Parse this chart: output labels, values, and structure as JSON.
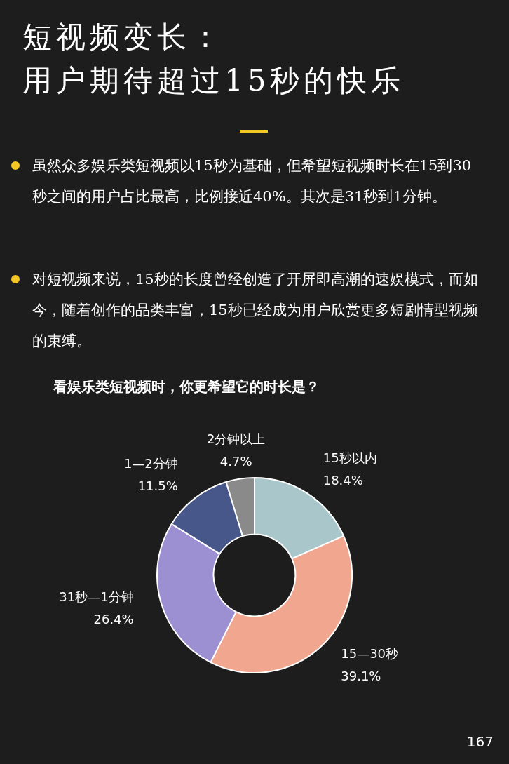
{
  "chart_data": {
    "type": "donut",
    "title": "短视频变长：",
    "subtitle": "用户期待超过15秒的快乐",
    "annotations": [
      "看娱乐类短视频时，你更希望它的时长是？",
      "虽然众多娱乐类短视频以15秒为基础，但希望短视频时长在15到30秒之间的用户占比最高，比例接近40%。其次是31秒到1分钟。",
      "对短视频来说，15秒的长度曾经创造了开屏即高潮的速娱模式，而如今，随着创作的品类丰富，15秒已经成为用户欣赏更多短剧情型视频的束缚。",
      "167"
    ],
    "categories": [
      "15秒以内",
      "15—30秒",
      "31秒—1分钟",
      "1—2分钟",
      "2分钟以上"
    ],
    "values": [
      18.4,
      39.1,
      26.4,
      11.5,
      4.7
    ],
    "value_labels": [
      "18.4%",
      "39.1%",
      "26.4%",
      "11.5%",
      "4.7%"
    ],
    "colors": [
      "#a9c7ca",
      "#f1a68f",
      "#9c90d2",
      "#48578a",
      "#8a8a8a"
    ],
    "legend": false
  }
}
